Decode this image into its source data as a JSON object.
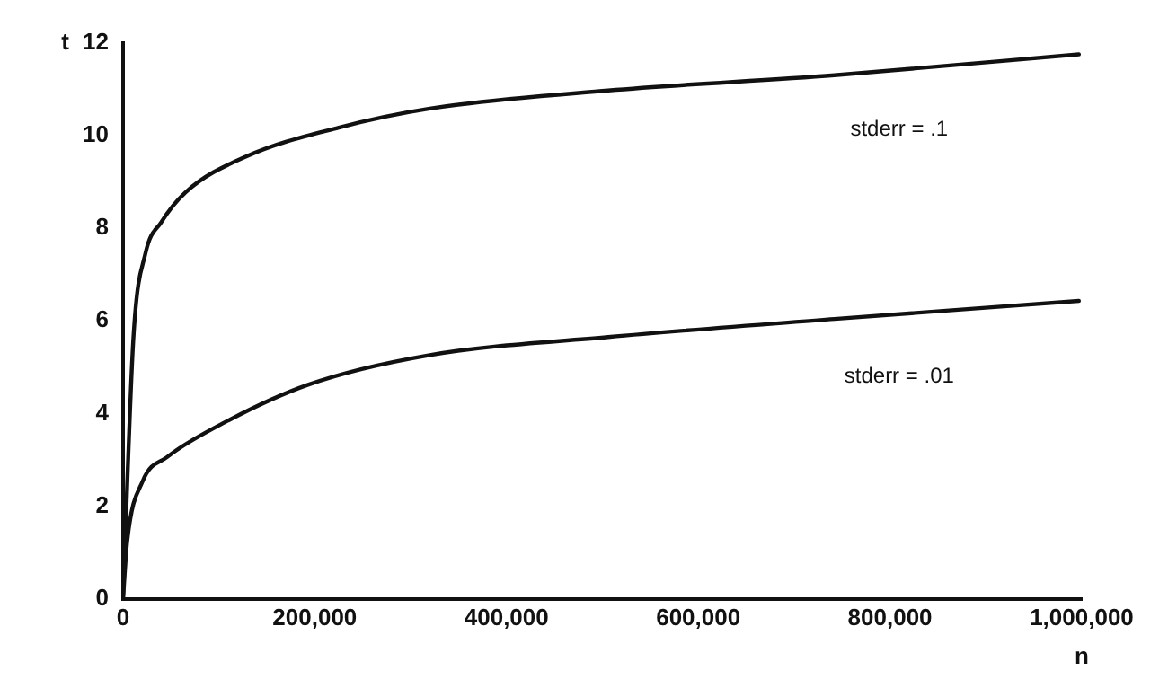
{
  "chart_data": {
    "type": "line",
    "xlabel": "n",
    "ylabel": "t",
    "series": [
      {
        "name": "stderr = .1",
        "color": "#111111",
        "x": [
          0,
          10900,
          23600,
          39600,
          65000,
          129000,
          225000,
          320000,
          506000,
          742000,
          997000
        ],
        "values": [
          0,
          5.65,
          7.47,
          8.12,
          8.77,
          9.55,
          10.17,
          10.58,
          10.97,
          11.3,
          11.75
        ]
      },
      {
        "name": "stderr = .01",
        "color": "#111111",
        "x": [
          0,
          4400,
          20500,
          46000,
          97000,
          193000,
          320000,
          506000,
          742000,
          997000
        ],
        "values": [
          0,
          1.25,
          2.54,
          3.06,
          3.71,
          4.62,
          5.26,
          5.65,
          6.04,
          6.43
        ]
      }
    ],
    "xlim": [
      0,
      1000000
    ],
    "xticks": [
      0,
      {
        "value": 200000,
        "label": "200,000"
      },
      {
        "value": 400000,
        "label": "400,000"
      },
      {
        "value": 600000,
        "label": "600,000"
      },
      {
        "value": 800000,
        "label": "800,000"
      },
      {
        "value": 1000000,
        "label": "1,000,000"
      }
    ],
    "ylim": [
      0,
      12
    ],
    "yticks": [
      0,
      2,
      4,
      6,
      8,
      10,
      12
    ],
    "grid": false,
    "legend": false,
    "marker": "none",
    "line_style": "solid"
  }
}
